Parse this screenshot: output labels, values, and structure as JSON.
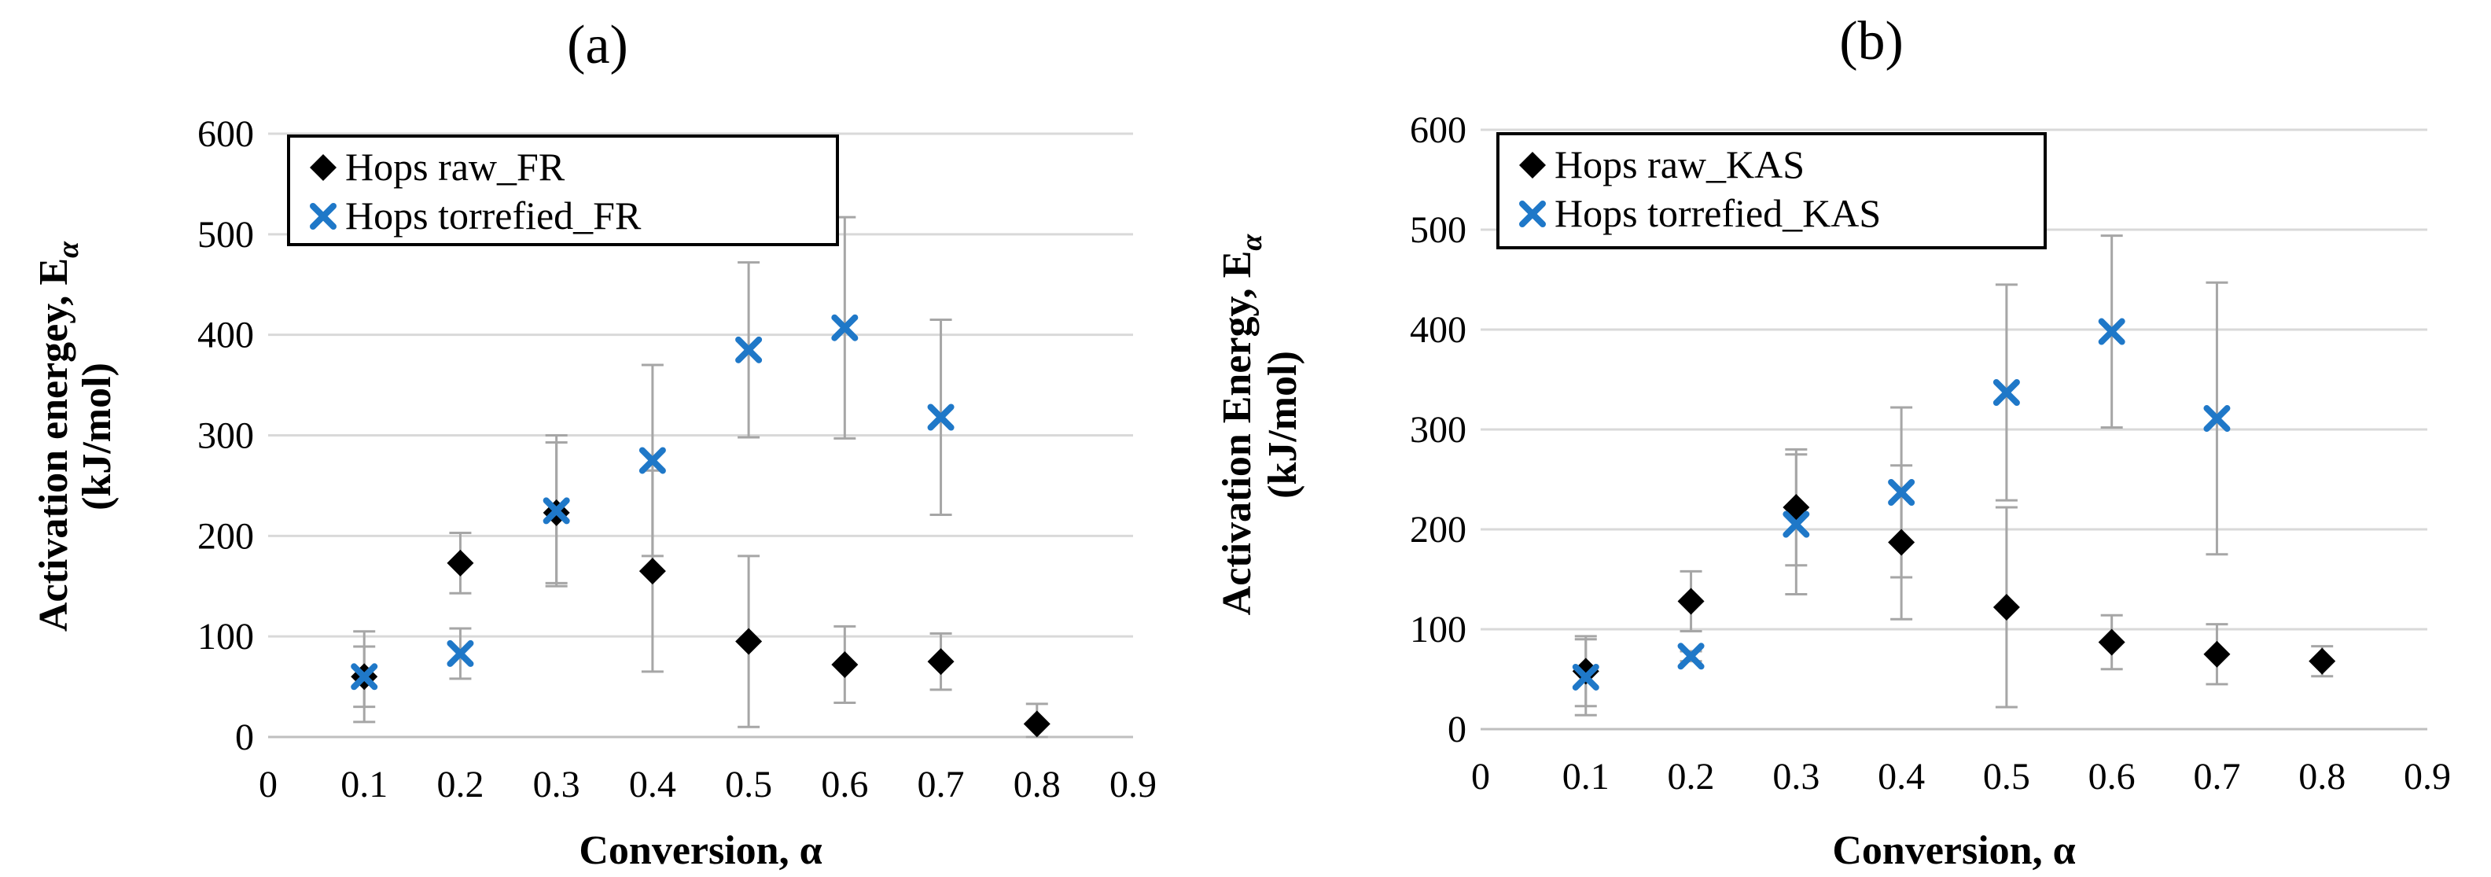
{
  "chart_data": [
    {
      "type": "scatter",
      "panel_label": "(a)",
      "xlabel": "Conversion, α",
      "ylabel_line1": "Activation energey, E",
      "ylabel_subscript": "α",
      "ylabel_line2": "(kJ/mol)",
      "xlim": [
        0,
        0.9
      ],
      "ylim": [
        0,
        600
      ],
      "x_ticks": [
        "0",
        "0.1",
        "0.2",
        "0.3",
        "0.4",
        "0.5",
        "0.6",
        "0.7",
        "0.8",
        "0.9"
      ],
      "y_ticks": [
        "0",
        "100",
        "200",
        "300",
        "400",
        "500",
        "600"
      ],
      "grid": "horizontal",
      "legend_position": "top-left",
      "series": [
        {
          "name": "Hops raw_FR",
          "marker": "diamond",
          "color": "#000000",
          "points": [
            {
              "x": 0.1,
              "y": 60,
              "err": 30
            },
            {
              "x": 0.2,
              "y": 173,
              "err": 30
            },
            {
              "x": 0.3,
              "y": 223,
              "err": 70
            },
            {
              "x": 0.4,
              "y": 165,
              "err": 100
            },
            {
              "x": 0.5,
              "y": 95,
              "err": 85
            },
            {
              "x": 0.6,
              "y": 72,
              "err": 38
            },
            {
              "x": 0.7,
              "y": 75,
              "err": 28
            },
            {
              "x": 0.8,
              "y": 13,
              "err": 20
            }
          ]
        },
        {
          "name": "Hops torrefied_FR",
          "marker": "x",
          "color": "#1F78C8",
          "points": [
            {
              "x": 0.1,
              "y": 60,
              "err": 45
            },
            {
              "x": 0.2,
              "y": 83,
              "err": 25
            },
            {
              "x": 0.3,
              "y": 225,
              "err": 75
            },
            {
              "x": 0.4,
              "y": 275,
              "err": 95
            },
            {
              "x": 0.5,
              "y": 385,
              "err": 87
            },
            {
              "x": 0.6,
              "y": 407,
              "err": 110
            },
            {
              "x": 0.7,
              "y": 318,
              "err": 97
            }
          ]
        }
      ]
    },
    {
      "type": "scatter",
      "panel_label": "(b)",
      "xlabel": "Conversion, α",
      "ylabel_line1": "Activation Energy, E",
      "ylabel_subscript": "α",
      "ylabel_line2": "(kJ/mol)",
      "xlim": [
        0,
        0.9
      ],
      "ylim": [
        0,
        600
      ],
      "x_ticks": [
        "0",
        "0.1",
        "0.2",
        "0.3",
        "0.4",
        "0.5",
        "0.6",
        "0.7",
        "0.8",
        "0.9"
      ],
      "y_ticks": [
        "0",
        "100",
        "200",
        "300",
        "400",
        "500",
        "600"
      ],
      "grid": "horizontal",
      "legend_position": "top-left",
      "series": [
        {
          "name": "Hops raw_KAS",
          "marker": "diamond",
          "color": "#000000",
          "points": [
            {
              "x": 0.1,
              "y": 58,
              "err": 35
            },
            {
              "x": 0.2,
              "y": 128,
              "err": 30
            },
            {
              "x": 0.3,
              "y": 222,
              "err": 58
            },
            {
              "x": 0.4,
              "y": 187,
              "err": 77
            },
            {
              "x": 0.5,
              "y": 122,
              "err": 100
            },
            {
              "x": 0.6,
              "y": 87,
              "err": 27
            },
            {
              "x": 0.7,
              "y": 75,
              "err": 30
            },
            {
              "x": 0.8,
              "y": 68,
              "err": 15
            }
          ]
        },
        {
          "name": "Hops torrefied_KAS",
          "marker": "x",
          "color": "#1F78C8",
          "points": [
            {
              "x": 0.1,
              "y": 52,
              "err": 38
            },
            {
              "x": 0.2,
              "y": 73,
              "err": 5
            },
            {
              "x": 0.3,
              "y": 205,
              "err": 70
            },
            {
              "x": 0.4,
              "y": 237,
              "err": 85
            },
            {
              "x": 0.5,
              "y": 337,
              "err": 108
            },
            {
              "x": 0.6,
              "y": 398,
              "err": 96
            },
            {
              "x": 0.7,
              "y": 311,
              "err": 136
            }
          ]
        }
      ]
    }
  ]
}
